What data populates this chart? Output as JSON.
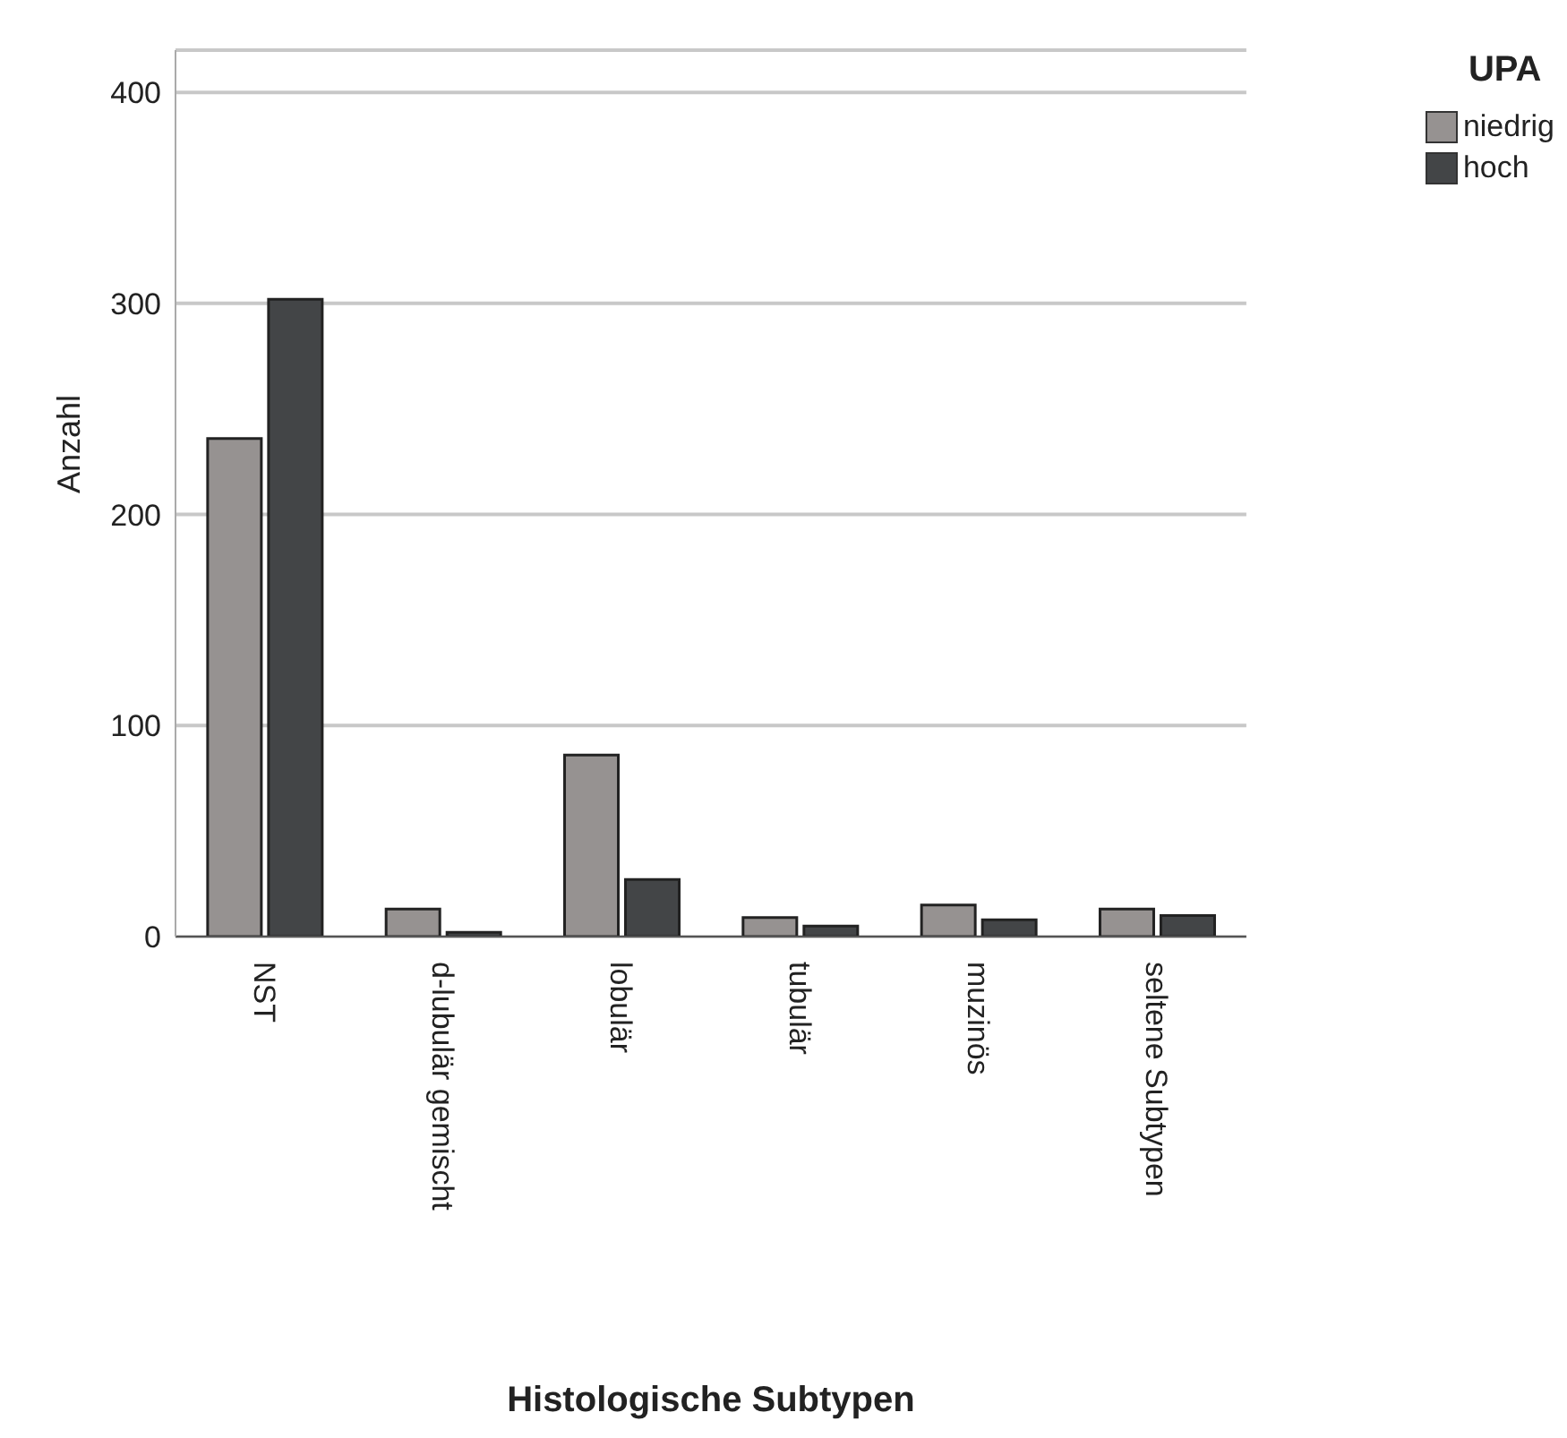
{
  "chart_data": {
    "type": "bar",
    "xlabel": "Histologische Subtypen",
    "ylabel": "Anzahl",
    "legend_title": "UPA",
    "categories": [
      "NST",
      "d-lubulär gemischt",
      "lobulär",
      "tubulär",
      "muzinös",
      "seltene Subtypen"
    ],
    "series": [
      {
        "name": "niedrig",
        "color": "#969291",
        "values": [
          236,
          13,
          86,
          9,
          15,
          13
        ]
      },
      {
        "name": "hoch",
        "color": "#434547",
        "values": [
          302,
          2,
          27,
          5,
          8,
          10
        ]
      }
    ],
    "ylim": [
      0,
      420
    ],
    "yticks": [
      0,
      100,
      200,
      300,
      400
    ],
    "grid": "y",
    "legend": "top right"
  }
}
